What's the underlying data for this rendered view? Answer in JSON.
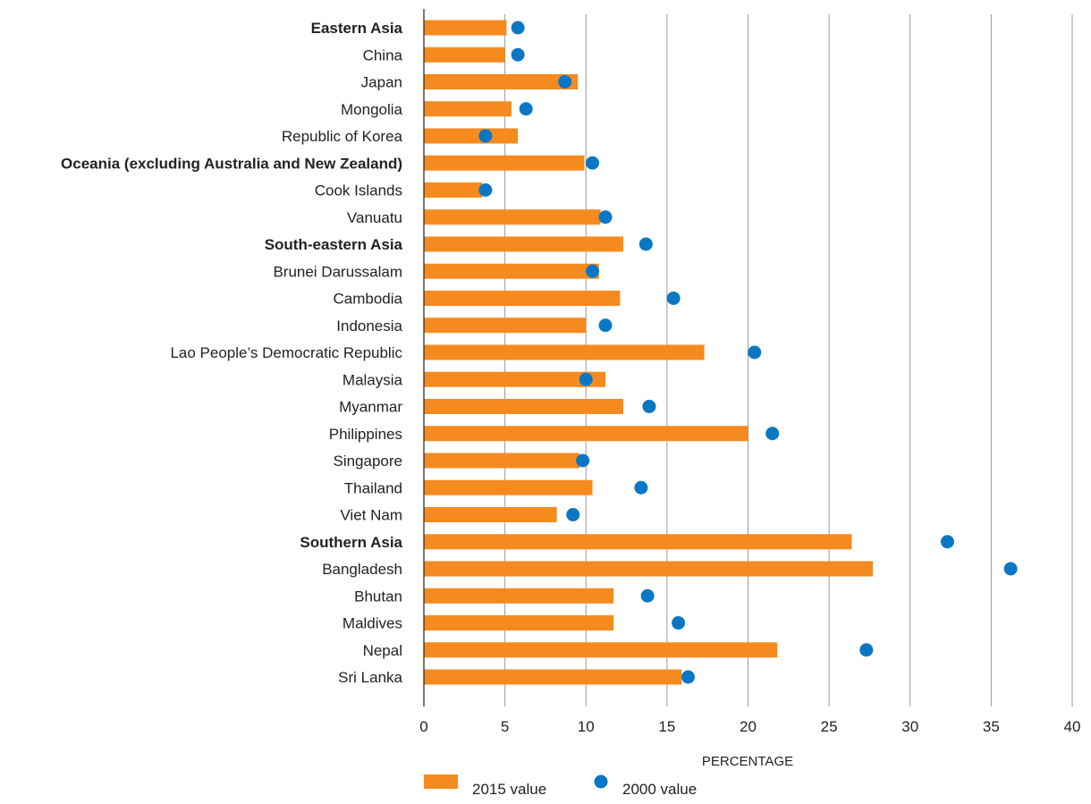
{
  "chart_data": {
    "type": "bar",
    "title": "",
    "xlabel": "PERCENTAGE",
    "ylabel": "",
    "xlim": [
      0,
      40
    ],
    "ticks": [
      0,
      5,
      10,
      15,
      20,
      25,
      30,
      35,
      40
    ],
    "grid": true,
    "legend_position": "bottom",
    "categories": [
      "Eastern Asia",
      "China",
      "Japan",
      "Mongolia",
      "Republic of Korea",
      "Oceania (excluding Australia and New Zealand)",
      "Cook Islands",
      "Vanuatu",
      "South-eastern Asia",
      "Brunei Darussalam",
      "Cambodia",
      "Indonesia",
      "Lao People’s Democratic Republic",
      "Malaysia",
      "Myanmar",
      "Philippines",
      "Singapore",
      "Thailand",
      "Viet Nam",
      "Southern Asia",
      "Bangladesh",
      "Bhutan",
      "Maldives",
      "Nepal",
      "Sri Lanka"
    ],
    "bold_categories": [
      "Eastern Asia",
      "Oceania (excluding Australia and New Zealand)",
      "South-eastern Asia",
      "Southern Asia"
    ],
    "series": [
      {
        "name": "2015 value",
        "kind": "bar",
        "color": "#F58A1F",
        "values": [
          5.1,
          5.0,
          9.5,
          5.4,
          5.8,
          9.9,
          3.6,
          10.9,
          12.3,
          10.8,
          12.1,
          10.0,
          17.3,
          11.2,
          12.3,
          20.0,
          9.6,
          10.4,
          8.2,
          26.4,
          27.7,
          11.7,
          11.7,
          21.8,
          15.9
        ]
      },
      {
        "name": "2000 value",
        "kind": "dot",
        "color": "#0A77C4",
        "values": [
          5.8,
          5.8,
          8.7,
          6.3,
          3.8,
          10.4,
          3.8,
          11.2,
          13.7,
          10.4,
          15.4,
          11.2,
          20.4,
          10.0,
          13.9,
          21.5,
          9.8,
          13.4,
          9.2,
          32.3,
          36.2,
          13.8,
          15.7,
          27.3,
          16.3
        ]
      }
    ]
  }
}
